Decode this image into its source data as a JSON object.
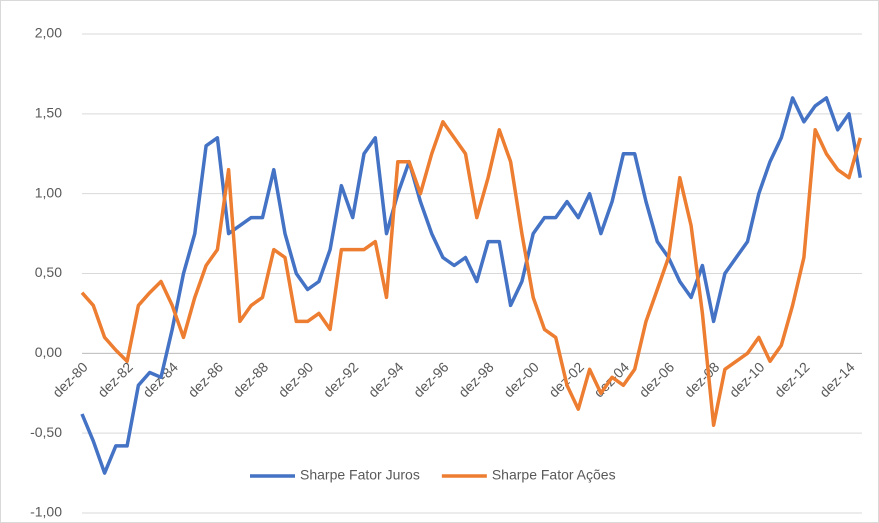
{
  "chart_data": {
    "type": "line",
    "categories": [
      "dez-80",
      null,
      null,
      null,
      "dez-82",
      null,
      null,
      null,
      "dez-84",
      null,
      null,
      null,
      "dez-86",
      null,
      null,
      null,
      "dez-88",
      null,
      null,
      null,
      "dez-90",
      null,
      null,
      null,
      "dez-92",
      null,
      null,
      null,
      "dez-94",
      null,
      null,
      null,
      "dez-96",
      null,
      null,
      null,
      "dez-98",
      null,
      null,
      null,
      "dez-00",
      null,
      null,
      null,
      "dez-02",
      null,
      null,
      null,
      "dez-04",
      null,
      null,
      null,
      "dez-06",
      null,
      null,
      null,
      "dez-08",
      null,
      null,
      null,
      "dez-10",
      null,
      null,
      null,
      "dez-12",
      null,
      null,
      null,
      "dez-14",
      null
    ],
    "series": [
      {
        "name": "Sharpe Fator Juros",
        "color": "#4472c4",
        "values": [
          -0.38,
          -0.55,
          -0.75,
          -0.58,
          -0.58,
          -0.2,
          -0.12,
          -0.15,
          0.15,
          0.5,
          0.75,
          1.3,
          1.35,
          0.75,
          0.8,
          0.85,
          0.85,
          1.15,
          0.75,
          0.5,
          0.4,
          0.45,
          0.65,
          1.05,
          0.85,
          1.25,
          1.35,
          0.75,
          1.0,
          1.2,
          0.95,
          0.75,
          0.6,
          0.55,
          0.6,
          0.45,
          0.7,
          0.7,
          0.3,
          0.45,
          0.75,
          0.85,
          0.85,
          0.95,
          0.85,
          1.0,
          0.75,
          0.95,
          1.25,
          1.25,
          0.95,
          0.7,
          0.6,
          0.45,
          0.35,
          0.55,
          0.2,
          0.5,
          0.6,
          0.7,
          1.0,
          1.2,
          1.35,
          1.6,
          1.45,
          1.55,
          1.6,
          1.4,
          1.5,
          1.1
        ]
      },
      {
        "name": "Sharpe Fator Ações",
        "color": "#ed7d31",
        "values": [
          0.38,
          0.3,
          0.1,
          0.02,
          -0.05,
          0.3,
          0.38,
          0.45,
          0.3,
          0.1,
          0.35,
          0.55,
          0.65,
          1.15,
          0.2,
          0.3,
          0.35,
          0.65,
          0.6,
          0.2,
          0.2,
          0.25,
          0.15,
          0.65,
          0.65,
          0.65,
          0.7,
          0.35,
          1.2,
          1.2,
          1.0,
          1.25,
          1.45,
          1.35,
          1.25,
          0.85,
          1.1,
          1.4,
          1.2,
          0.75,
          0.35,
          0.15,
          0.1,
          -0.2,
          -0.35,
          -0.1,
          -0.25,
          -0.15,
          -0.2,
          -0.1,
          0.2,
          0.4,
          0.6,
          1.1,
          0.8,
          0.25,
          -0.45,
          -0.1,
          -0.05,
          0.0,
          0.1,
          -0.05,
          0.05,
          0.3,
          0.6,
          1.4,
          1.25,
          1.15,
          1.1,
          1.35
        ]
      }
    ],
    "ylim": [
      -1,
      2
    ],
    "yticks": [
      {
        "value": -1,
        "label": "-1,00"
      },
      {
        "value": -0.5,
        "label": "-0,50"
      },
      {
        "value": 0,
        "label": "0,00"
      },
      {
        "value": 0.5,
        "label": "0,50"
      },
      {
        "value": 1,
        "label": "1,00"
      },
      {
        "value": 1.5,
        "label": "1,50"
      },
      {
        "value": 2,
        "label": "2,00"
      }
    ],
    "grid": true,
    "legend": "bottom"
  }
}
